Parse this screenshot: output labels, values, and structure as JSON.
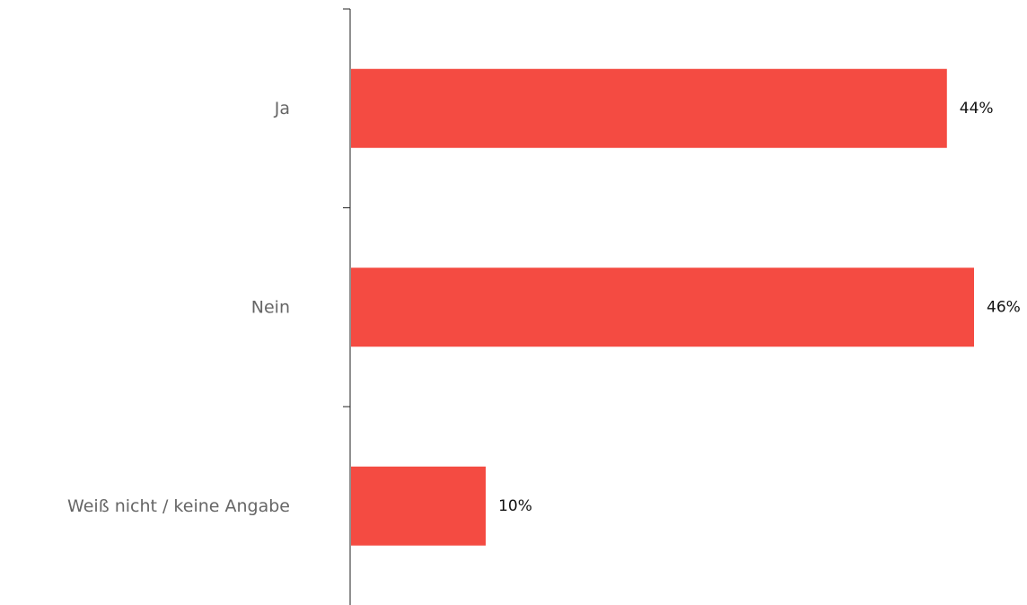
{
  "chart_data": {
    "type": "bar",
    "orientation": "horizontal",
    "categories": [
      "Ja",
      "Nein",
      "Weiß nicht / keine Angabe"
    ],
    "values": [
      44,
      46,
      10
    ],
    "value_labels": [
      "44%",
      "46%",
      "10%"
    ],
    "unit": "%",
    "title": "",
    "xlabel": "",
    "ylabel": "",
    "xlim": [
      0,
      46
    ],
    "grid": false,
    "legend": "none",
    "bar_color": "#f44b42"
  }
}
